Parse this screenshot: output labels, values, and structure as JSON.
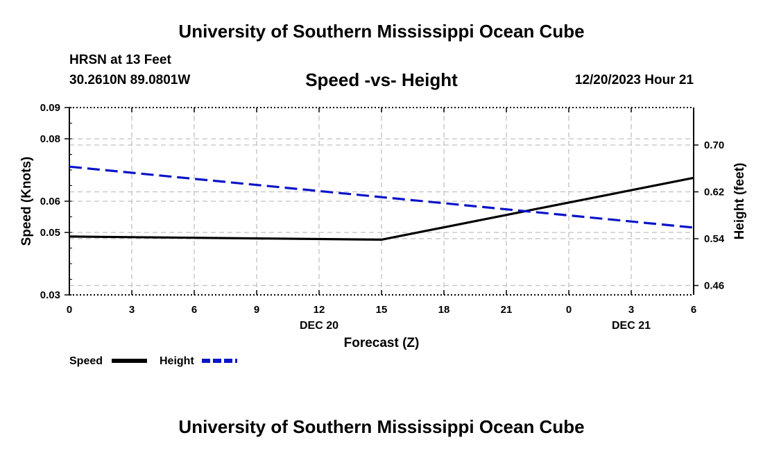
{
  "header": {
    "title": "University of Southern Mississippi Ocean Cube",
    "station_name": "HRSN at 13 Feet",
    "coords": "30.2610N  89.0801W",
    "subtitle": "Speed -vs- Height",
    "datetime": "12/20/2023 Hour 21"
  },
  "footer": {
    "title": "University of Southern Mississippi Ocean Cube"
  },
  "colors": {
    "speed": "#000000",
    "height": "#0a14c8",
    "grid": "#c0c0c0"
  },
  "chart_data": {
    "type": "line",
    "title": "Speed -vs- Height",
    "xlabel": "Forecast (Z)",
    "ylabel": "Speed (Knots)",
    "y2label": "Height (feet)",
    "x_ticks": [
      "0",
      "3",
      "6",
      "9",
      "12",
      "15",
      "18",
      "21",
      "0",
      "3",
      "6"
    ],
    "x_date_labels": [
      {
        "tick_index": 4,
        "label": "DEC 20"
      },
      {
        "tick_index": 9,
        "label": "DEC 21"
      }
    ],
    "xlim": [
      0,
      30
    ],
    "ylim": [
      0.03,
      0.09
    ],
    "y_ticks": [
      0.03,
      0.05,
      0.06,
      0.08,
      0.09
    ],
    "y_tick_labels": [
      "0.03",
      "0.05",
      "0.06",
      "0.08",
      "0.09"
    ],
    "y2lim": [
      0.444,
      0.764
    ],
    "y2_ticks": [
      0.46,
      0.54,
      0.62,
      0.7
    ],
    "y2_tick_labels": [
      "0.46",
      "0.54",
      "0.62",
      "0.70"
    ],
    "legend_position": "bottom-left",
    "series": [
      {
        "name": "Speed",
        "axis": "left",
        "style": "solid",
        "x": [
          0,
          15,
          30
        ],
        "values": [
          0.0487,
          0.0477,
          0.0675
        ]
      },
      {
        "name": "Height",
        "axis": "right",
        "style": "dashed",
        "x": [
          0,
          30
        ],
        "values": [
          0.663,
          0.559
        ]
      }
    ]
  }
}
